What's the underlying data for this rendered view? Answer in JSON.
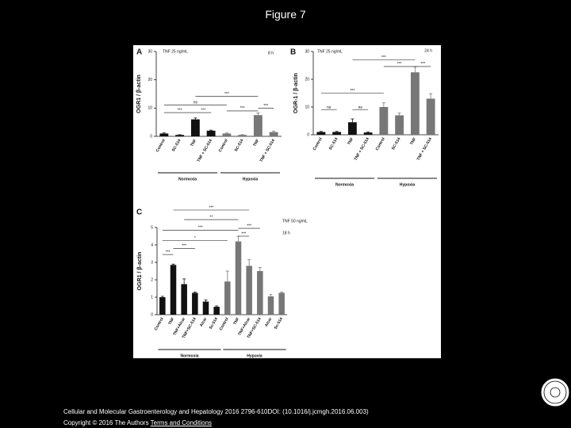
{
  "title": "Figure 7",
  "chart_data": [
    {
      "type": "bar",
      "panel": "A",
      "annotations": [
        "TNF 25 ng/mL",
        "8 h"
      ],
      "ylabel": "OGR1 / β-actin",
      "categories": [
        "Control",
        "SC-514",
        "TNF",
        "TNF + SC-514",
        "Control",
        "SC-514",
        "TNF",
        "TNF + SC-514"
      ],
      "values": [
        1,
        0.5,
        6,
        2,
        1,
        0.5,
        7.5,
        1.5
      ],
      "errors": [
        0.2,
        0.1,
        0.5,
        0.2,
        0.2,
        0.1,
        0.8,
        0.3
      ],
      "colors": [
        "#111111",
        "#111111",
        "#111111",
        "#111111",
        "#777777",
        "#777777",
        "#777777",
        "#777777"
      ],
      "ylim": [
        0,
        30
      ],
      "yticks": [
        0,
        10,
        20,
        30
      ],
      "groups": [
        "Normoxia",
        "Hypoxia"
      ],
      "significance": [
        "***",
        "ns",
        "***",
        "***",
        "***",
        "***"
      ]
    },
    {
      "type": "bar",
      "panel": "B",
      "annotations": [
        "TNF 25 ng/mL",
        "24 h"
      ],
      "ylabel": "OGR-1 / β-actin",
      "categories": [
        "Control",
        "SC-514",
        "TNF",
        "TNF + SC-514",
        "Control",
        "SC-514",
        "TNF",
        "TNF + SC-514"
      ],
      "values": [
        1,
        1,
        4.5,
        0.8,
        10,
        7,
        22.5,
        13
      ],
      "errors": [
        0.2,
        0.2,
        1.2,
        0.2,
        1.5,
        0.8,
        2,
        1.8
      ],
      "colors": [
        "#111111",
        "#111111",
        "#111111",
        "#111111",
        "#777777",
        "#777777",
        "#777777",
        "#777777"
      ],
      "ylim": [
        0,
        30
      ],
      "yticks": [
        0,
        10,
        20,
        30
      ],
      "groups": [
        "Normoxia",
        "Hypoxia"
      ],
      "significance": [
        "***",
        "***",
        "***",
        "***",
        "ns",
        "ns"
      ]
    },
    {
      "type": "bar",
      "panel": "C",
      "annotations": [
        "TNF 50 ng/mL",
        "18 h"
      ],
      "ylabel": "OGR1 / β-actin",
      "categories": [
        "Control",
        "TNF",
        "TNF+Alcar",
        "TNF+SC-514",
        "Alcar",
        "Sc-514",
        "Control",
        "TNF",
        "TNF+Alcar",
        "TNF+SC-514",
        "Alcar",
        "Sc-514"
      ],
      "values": [
        1,
        2.85,
        1.75,
        1.25,
        0.75,
        0.45,
        1.9,
        4.2,
        2.8,
        2.5,
        1.05,
        1.25
      ],
      "errors": [
        0.05,
        0.05,
        0.3,
        0.05,
        0.1,
        0.05,
        0.6,
        0.3,
        0.35,
        0.2,
        0.1,
        0.05
      ],
      "colors": [
        "#111111",
        "#111111",
        "#111111",
        "#111111",
        "#111111",
        "#111111",
        "#777777",
        "#777777",
        "#777777",
        "#777777",
        "#777777",
        "#777777"
      ],
      "ylim": [
        0,
        5
      ],
      "yticks": [
        0,
        1,
        2,
        3,
        4,
        5
      ],
      "groups": [
        "Normoxia",
        "Hypoxia"
      ],
      "significance": [
        "***",
        "**",
        "***",
        "*",
        "***",
        "***",
        "***",
        "***"
      ]
    }
  ],
  "footer": {
    "citation": "Cellular and Molecular Gastroenterology and Hepatology 2016 2796-610DOI: (10.1016/j.jcmgh.2016.06.003)",
    "copyright": "Copyright © 2016 The Authors",
    "link": "Terms and Conditions"
  }
}
